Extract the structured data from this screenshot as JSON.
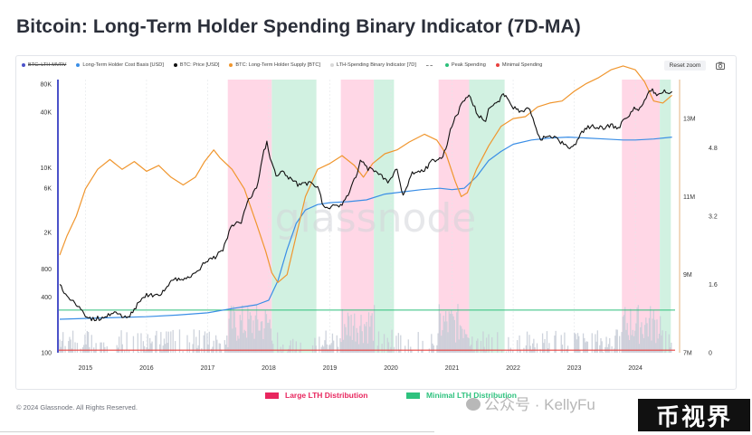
{
  "title": "Bitcoin: Long-Term Holder Spending Binary Indicator (7D-MA)",
  "legend": [
    {
      "label": "BTC: LTH-MVRV",
      "color": "#4b52c9",
      "style": "dot",
      "hidden": true
    },
    {
      "label": "Long-Term Holder Cost Basis [USD]",
      "color": "#3a8ee6",
      "style": "dot"
    },
    {
      "label": "BTC: Price [USD]",
      "color": "#111111",
      "style": "dot"
    },
    {
      "label": "BTC: Long-Term Holder Supply [BTC]",
      "color": "#f0962e",
      "style": "dot"
    },
    {
      "label": "LTH-Spending Binary Indicator [7D]",
      "color": "#d8d8d8",
      "style": "dot"
    },
    {
      "label": "",
      "color": "#888888",
      "style": "dash"
    },
    {
      "label": "Peak Spending",
      "color": "#2cbf7a",
      "style": "dot"
    },
    {
      "label": "Minimal Spending",
      "color": "#e8403e",
      "style": "dot"
    }
  ],
  "reset_zoom": "Reset zoom",
  "camera_icon": "camera-icon",
  "watermark": "glassnode",
  "footer": "© 2024 Glassnode. All Rights Reserved.",
  "bottom_legend": [
    {
      "label": "Large LTH Distribution",
      "color": "#e8265e"
    },
    {
      "label": "Minimal LTH Distribution",
      "color": "#2ec27e"
    }
  ],
  "overlay_watermark": "公众号 · KellyFu",
  "stamp": "币视界",
  "colors": {
    "pink_band": "#ffd0e2",
    "green_band": "#c9efdc",
    "price": "#111111",
    "cost_basis": "#3a8ee6",
    "supply": "#f0962e",
    "binary": "#c9ced8",
    "peak_line": "#2cbf7a",
    "min_line": "#e8403e",
    "axis_left": "#4b52c9"
  },
  "chart_data": {
    "type": "line",
    "x_axis": {
      "ticks": [
        "2015",
        "2016",
        "2017",
        "2018",
        "2019",
        "2020",
        "2021",
        "2022",
        "2023",
        "2024"
      ],
      "range": [
        2014.55,
        2024.65
      ]
    },
    "y_left": {
      "scale": "log",
      "ticks": [
        "100",
        "400",
        "800",
        "2K",
        "6K",
        "10K",
        "40K",
        "80K"
      ],
      "range": [
        100,
        90000
      ]
    },
    "y_right_supply": {
      "ticks": [
        "7M",
        "9M",
        "11M",
        "13M"
      ],
      "range": [
        7,
        14
      ]
    },
    "y_right_mvrv": {
      "ticks": [
        "0",
        "1.6",
        "3.2",
        "4.8"
      ],
      "range": [
        0,
        6.4
      ]
    },
    "bands": [
      {
        "kind": "large",
        "start": 2017.33,
        "end": 2018.05
      },
      {
        "kind": "minimal",
        "start": 2018.05,
        "end": 2018.78
      },
      {
        "kind": "large",
        "start": 2019.18,
        "end": 2019.72
      },
      {
        "kind": "minimal",
        "start": 2019.72,
        "end": 2020.05
      },
      {
        "kind": "large",
        "start": 2020.78,
        "end": 2021.28
      },
      {
        "kind": "minimal",
        "start": 2021.28,
        "end": 2021.86
      },
      {
        "kind": "large",
        "start": 2023.78,
        "end": 2024.4
      },
      {
        "kind": "minimal",
        "start": 2024.4,
        "end": 2024.58
      }
    ],
    "series": [
      {
        "name": "BTC: Price [USD]",
        "axis": "left",
        "points": [
          [
            2014.58,
            550
          ],
          [
            2014.7,
            400
          ],
          [
            2014.85,
            340
          ],
          [
            2015.0,
            250
          ],
          [
            2015.1,
            230
          ],
          [
            2015.3,
            240
          ],
          [
            2015.5,
            270
          ],
          [
            2015.7,
            235
          ],
          [
            2015.85,
            330
          ],
          [
            2016.0,
            420
          ],
          [
            2016.2,
            410
          ],
          [
            2016.45,
            650
          ],
          [
            2016.6,
            600
          ],
          [
            2016.8,
            700
          ],
          [
            2016.95,
            950
          ],
          [
            2017.1,
            1050
          ],
          [
            2017.25,
            1300
          ],
          [
            2017.4,
            2400
          ],
          [
            2017.55,
            2600
          ],
          [
            2017.65,
            4300
          ],
          [
            2017.8,
            6000
          ],
          [
            2017.92,
            15000
          ],
          [
            2017.97,
            19000
          ],
          [
            2018.05,
            11000
          ],
          [
            2018.12,
            8500
          ],
          [
            2018.25,
            9000
          ],
          [
            2018.35,
            7500
          ],
          [
            2018.5,
            6500
          ],
          [
            2018.65,
            6800
          ],
          [
            2018.8,
            6300
          ],
          [
            2018.9,
            3700
          ],
          [
            2019.0,
            3800
          ],
          [
            2019.2,
            4000
          ],
          [
            2019.35,
            6000
          ],
          [
            2019.45,
            9000
          ],
          [
            2019.5,
            12000
          ],
          [
            2019.6,
            10000
          ],
          [
            2019.8,
            8500
          ],
          [
            2019.95,
            7200
          ],
          [
            2020.1,
            9500
          ],
          [
            2020.2,
            5000
          ],
          [
            2020.35,
            9000
          ],
          [
            2020.55,
            9300
          ],
          [
            2020.65,
            11500
          ],
          [
            2020.85,
            13000
          ],
          [
            2020.92,
            18000
          ],
          [
            2021.0,
            29000
          ],
          [
            2021.1,
            40000
          ],
          [
            2021.18,
            55000
          ],
          [
            2021.3,
            60000
          ],
          [
            2021.42,
            36000
          ],
          [
            2021.55,
            33000
          ],
          [
            2021.62,
            47000
          ],
          [
            2021.75,
            50000
          ],
          [
            2021.82,
            64000
          ],
          [
            2021.88,
            60000
          ],
          [
            2021.98,
            47000
          ],
          [
            2022.1,
            40000
          ],
          [
            2022.25,
            45000
          ],
          [
            2022.35,
            30000
          ],
          [
            2022.45,
            20000
          ],
          [
            2022.6,
            23000
          ],
          [
            2022.75,
            20000
          ],
          [
            2022.88,
            16500
          ],
          [
            2023.0,
            17000
          ],
          [
            2023.1,
            23000
          ],
          [
            2023.25,
            28000
          ],
          [
            2023.45,
            27000
          ],
          [
            2023.6,
            29000
          ],
          [
            2023.72,
            26500
          ],
          [
            2023.85,
            35000
          ],
          [
            2023.98,
            43000
          ],
          [
            2024.05,
            42000
          ],
          [
            2024.15,
            52000
          ],
          [
            2024.2,
            62000
          ],
          [
            2024.28,
            70000
          ],
          [
            2024.35,
            63000
          ],
          [
            2024.45,
            68000
          ],
          [
            2024.55,
            62000
          ],
          [
            2024.6,
            67000
          ]
        ]
      },
      {
        "name": "Long-Term Holder Cost Basis [USD]",
        "axis": "left",
        "points": [
          [
            2014.58,
            230
          ],
          [
            2015.0,
            235
          ],
          [
            2015.5,
            240
          ],
          [
            2016.0,
            245
          ],
          [
            2016.5,
            255
          ],
          [
            2017.0,
            270
          ],
          [
            2017.4,
            300
          ],
          [
            2017.8,
            330
          ],
          [
            2018.0,
            370
          ],
          [
            2018.15,
            600
          ],
          [
            2018.3,
            1300
          ],
          [
            2018.45,
            2500
          ],
          [
            2018.6,
            3500
          ],
          [
            2018.8,
            4000
          ],
          [
            2019.0,
            4200
          ],
          [
            2019.3,
            4300
          ],
          [
            2019.6,
            4500
          ],
          [
            2019.9,
            5200
          ],
          [
            2020.2,
            5500
          ],
          [
            2020.5,
            5800
          ],
          [
            2020.8,
            6000
          ],
          [
            2021.0,
            5800
          ],
          [
            2021.2,
            6000
          ],
          [
            2021.4,
            8000
          ],
          [
            2021.6,
            12000
          ],
          [
            2021.8,
            15000
          ],
          [
            2022.0,
            18000
          ],
          [
            2022.3,
            20000
          ],
          [
            2022.6,
            21000
          ],
          [
            2022.9,
            21500
          ],
          [
            2023.2,
            21000
          ],
          [
            2023.5,
            20500
          ],
          [
            2023.8,
            20000
          ],
          [
            2024.0,
            20000
          ],
          [
            2024.3,
            20500
          ],
          [
            2024.6,
            21500
          ]
        ]
      },
      {
        "name": "BTC: Long-Term Holder Supply [BTC]",
        "axis": "right",
        "points": [
          [
            2014.58,
            9.5
          ],
          [
            2014.7,
            10.0
          ],
          [
            2014.85,
            10.5
          ],
          [
            2015.0,
            11.2
          ],
          [
            2015.2,
            11.7
          ],
          [
            2015.4,
            11.95
          ],
          [
            2015.6,
            11.7
          ],
          [
            2015.8,
            11.9
          ],
          [
            2016.0,
            11.65
          ],
          [
            2016.2,
            11.8
          ],
          [
            2016.4,
            11.5
          ],
          [
            2016.6,
            11.3
          ],
          [
            2016.8,
            11.5
          ],
          [
            2016.95,
            11.9
          ],
          [
            2017.1,
            12.2
          ],
          [
            2017.2,
            12.0
          ],
          [
            2017.4,
            11.7
          ],
          [
            2017.6,
            11.2
          ],
          [
            2017.8,
            10.3
          ],
          [
            2017.95,
            9.6
          ],
          [
            2018.05,
            9.05
          ],
          [
            2018.15,
            8.8
          ],
          [
            2018.3,
            9.0
          ],
          [
            2018.45,
            10.0
          ],
          [
            2018.6,
            11.0
          ],
          [
            2018.8,
            11.7
          ],
          [
            2019.0,
            11.85
          ],
          [
            2019.2,
            12.05
          ],
          [
            2019.4,
            11.8
          ],
          [
            2019.55,
            11.5
          ],
          [
            2019.7,
            11.85
          ],
          [
            2019.9,
            12.1
          ],
          [
            2020.1,
            12.2
          ],
          [
            2020.3,
            12.4
          ],
          [
            2020.55,
            12.6
          ],
          [
            2020.75,
            12.45
          ],
          [
            2020.9,
            12.1
          ],
          [
            2021.05,
            11.4
          ],
          [
            2021.15,
            11.0
          ],
          [
            2021.25,
            11.1
          ],
          [
            2021.4,
            11.7
          ],
          [
            2021.6,
            12.3
          ],
          [
            2021.8,
            12.8
          ],
          [
            2022.0,
            13.0
          ],
          [
            2022.2,
            13.05
          ],
          [
            2022.4,
            13.3
          ],
          [
            2022.6,
            13.4
          ],
          [
            2022.8,
            13.45
          ],
          [
            2023.0,
            13.7
          ],
          [
            2023.2,
            13.9
          ],
          [
            2023.4,
            14.05
          ],
          [
            2023.6,
            14.25
          ],
          [
            2023.8,
            14.35
          ],
          [
            2024.0,
            14.25
          ],
          [
            2024.15,
            13.95
          ],
          [
            2024.3,
            13.45
          ],
          [
            2024.45,
            13.4
          ],
          [
            2024.6,
            13.6
          ]
        ]
      }
    ],
    "binary_indicator": {
      "name": "LTH-Spending Binary Indicator [7D]",
      "axis": "right_mvrv",
      "threshold_peak": 1.0,
      "threshold_min": 0.06
    },
    "note": "Log-scaled left axis in USD; right axes show LTH supply (BTC) and indicator scale."
  }
}
